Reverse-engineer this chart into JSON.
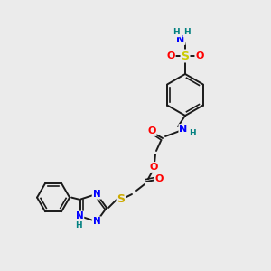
{
  "bg_color": "#ebebeb",
  "bond_color": "#1a1a1a",
  "colors": {
    "N": "#0000ff",
    "O": "#ff0000",
    "S_sulfonyl": "#cccc00",
    "S_thio": "#ccaa00",
    "H": "#008080",
    "C": "#1a1a1a"
  },
  "font_size_atom": 8,
  "font_size_H": 6.5
}
